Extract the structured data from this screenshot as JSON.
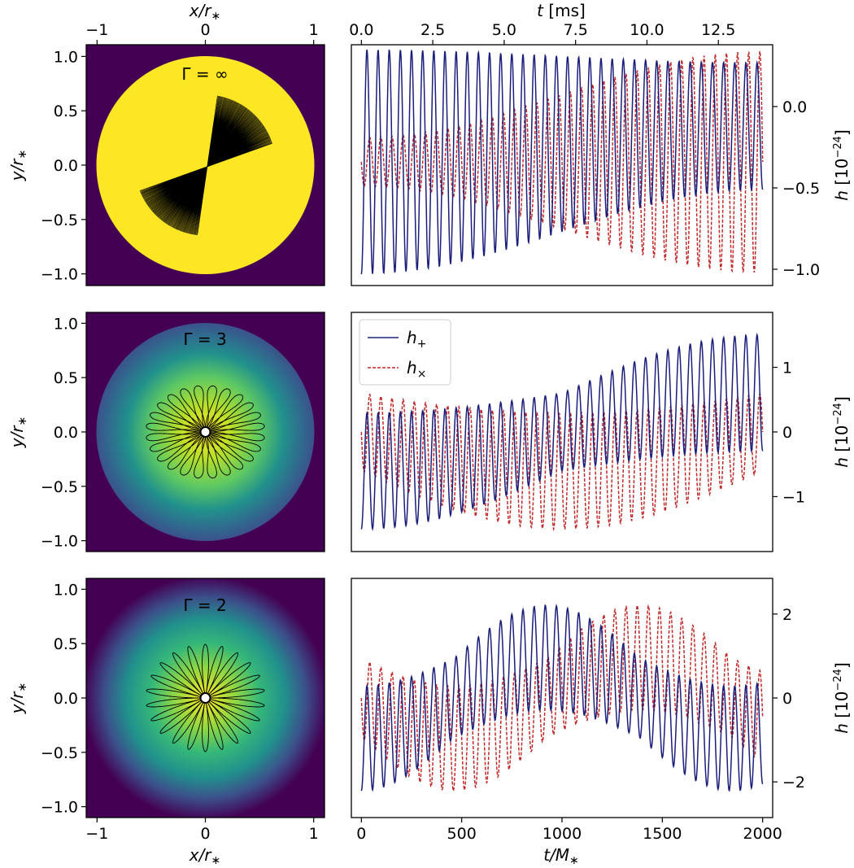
{
  "axes": {
    "x_top_left": "x/r_*",
    "x_top_right": "t [ms]",
    "x_bottom_left": "x/r_*",
    "x_bottom_right": "t/M_*",
    "y_left": "y/r_*",
    "y_right": "h [10^{-24}]"
  },
  "colors": {
    "h_plus": "#1b1e7a",
    "h_cross": "#c22a2a",
    "outside": "#440154",
    "yellow": "#fde725",
    "label_yellow": "#fde725",
    "label_blue": "#3b5ba8"
  },
  "chart_data": [
    {
      "type": "heatmap",
      "label": "Γ = ∞",
      "title": "",
      "xlabel": "x/r_*",
      "ylabel": "y/r_*",
      "xlim": [
        -1.1,
        1.1
      ],
      "ylim": [
        -1.1,
        1.1
      ],
      "xticks": [
        "−1",
        "0",
        "1"
      ],
      "yticks": [
        "1.0",
        "0.5",
        "0.0",
        "−0.5",
        "−1.0"
      ],
      "density_profile": "uniform",
      "orbit": {
        "shape": "precessing-needle",
        "extent": 0.65,
        "sweep_deg": 62
      }
    },
    {
      "type": "line",
      "title": "",
      "xlabel": "t [ms]",
      "ylabel": "h [10^{-24}]",
      "xlim": [
        -50,
        2050
      ],
      "ylim": [
        -1.1,
        0.38
      ],
      "xticks_ms": [
        "0.0",
        "2.5",
        "5.0",
        "7.5",
        "10.0",
        "12.5"
      ],
      "yticks": [
        "0.0",
        "−0.5",
        "−1.0"
      ],
      "series": [
        {
          "name": "h_+",
          "style": "solid",
          "min": -1.03,
          "max": 0.35
        },
        {
          "name": "h_×",
          "style": "dashed",
          "min": -1.03,
          "max": 0.35
        }
      ]
    },
    {
      "type": "heatmap",
      "label": "Γ = 3",
      "title": "",
      "xlabel": "x/r_*",
      "ylabel": "y/r_*",
      "xlim": [
        -1.1,
        1.1
      ],
      "ylim": [
        -1.1,
        1.1
      ],
      "xticks": [
        "−1",
        "0",
        "1"
      ],
      "yticks": [
        "1.0",
        "0.5",
        "0.0",
        "−0.5",
        "−1.0"
      ],
      "density_profile": "polytrope-gamma-3",
      "orbit": {
        "shape": "rosette",
        "outer_radius": 0.55,
        "inner_radius": 0.03,
        "lobes": 24
      }
    },
    {
      "type": "line",
      "title": "",
      "xlabel": "",
      "ylabel": "h [10^{-24}]",
      "xlim": [
        -50,
        2050
      ],
      "ylim": [
        -1.85,
        1.85
      ],
      "yticks": [
        "1",
        "0",
        "−1"
      ],
      "legend": {
        "placement": "top-left",
        "entries": [
          "h_+",
          "h_×"
        ]
      },
      "series": [
        {
          "name": "h_+",
          "style": "solid",
          "min": -1.75,
          "max": 1.75
        },
        {
          "name": "h_×",
          "style": "dashed",
          "min": -1.7,
          "max": 1.7
        }
      ]
    },
    {
      "type": "heatmap",
      "label": "Γ = 2",
      "title": "",
      "xlabel": "x/r_*",
      "ylabel": "y/r_*",
      "xlim": [
        -1.1,
        1.1
      ],
      "ylim": [
        -1.1,
        1.1
      ],
      "xticks": [
        "−1",
        "0",
        "1"
      ],
      "yticks": [
        "1.0",
        "0.5",
        "0.0",
        "−0.5",
        "−1.0"
      ],
      "density_profile": "polytrope-gamma-2",
      "orbit": {
        "shape": "rosette",
        "outer_radius": 0.55,
        "inner_radius": 0.05,
        "lobes": 22
      }
    },
    {
      "type": "line",
      "title": "",
      "xlabel": "t/M_*",
      "ylabel": "h [10^{-24}]",
      "xlim": [
        -50,
        2050
      ],
      "ylim": [
        -2.85,
        2.85
      ],
      "xticks": [
        "0",
        "500",
        "1000",
        "1500",
        "2000"
      ],
      "yticks": [
        "2",
        "0",
        "−2"
      ],
      "series": [
        {
          "name": "h_+",
          "style": "solid",
          "min": -2.7,
          "max": 2.65
        },
        {
          "name": "h_×",
          "style": "dashed",
          "min": -2.7,
          "max": 2.7
        }
      ]
    }
  ]
}
